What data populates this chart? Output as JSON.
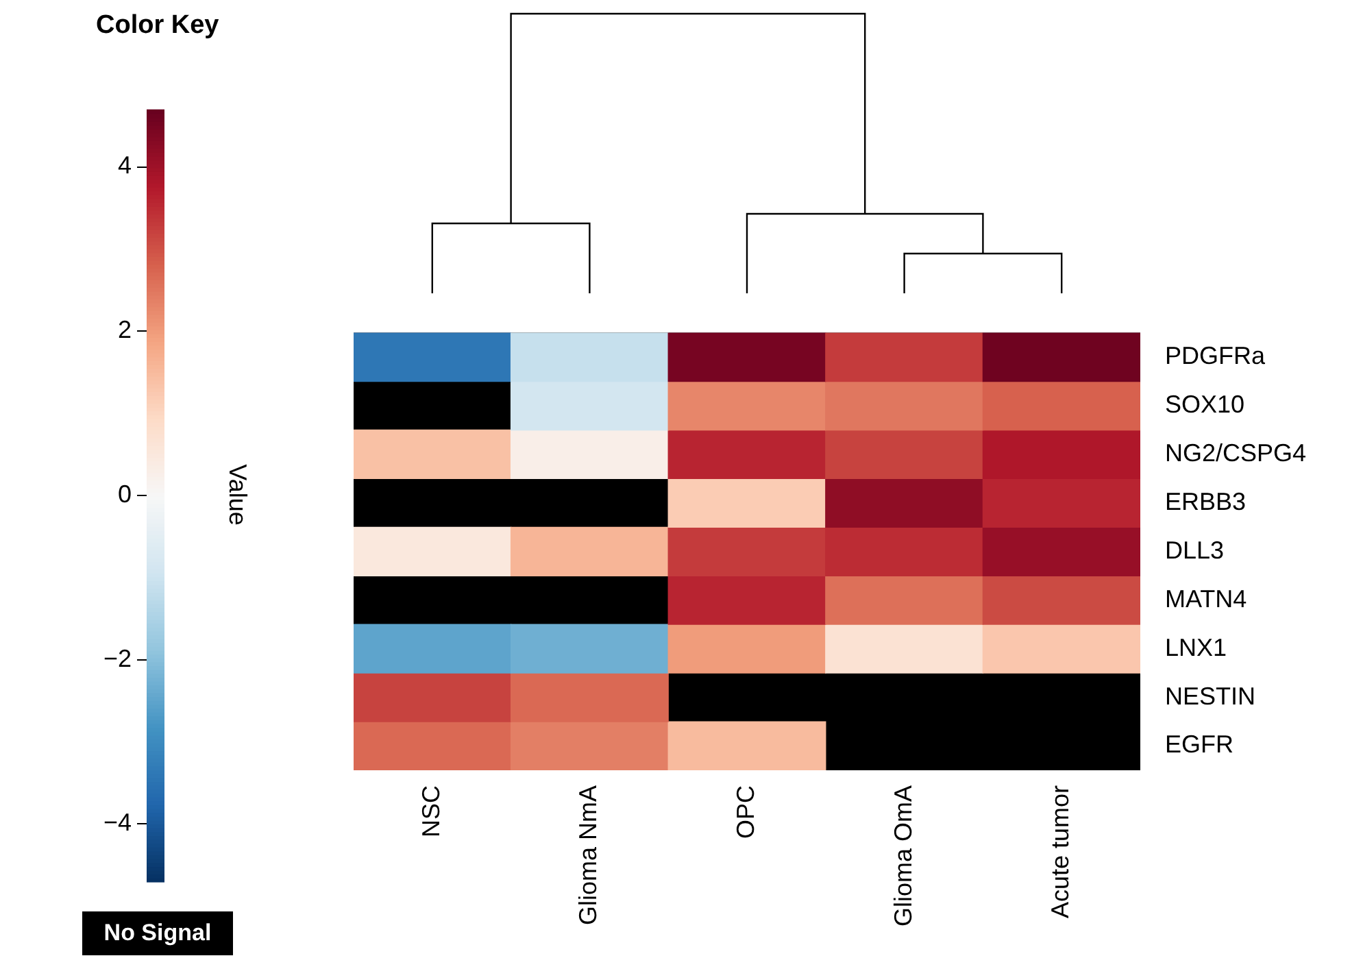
{
  "chart_data": {
    "type": "heatmap",
    "title": "Color Key",
    "clabel": "Value",
    "categories": [
      "NSC",
      "Glioma NmA",
      "OPC",
      "Glioma OmA",
      "Acute tumor"
    ],
    "y_categories": [
      "PDGFRa",
      "SOX10",
      "NG2/CSPG4",
      "ERBB3",
      "DLL3",
      "MATN4",
      "LNX1",
      "NESTIN",
      "EGFR"
    ],
    "cells": [
      [
        -3.4,
        -1.1,
        4.5,
        3.3,
        4.6
      ],
      [
        null,
        -0.9,
        2.3,
        2.5,
        2.8
      ],
      [
        1.4,
        0.3,
        3.6,
        3.2,
        3.8
      ],
      [
        null,
        null,
        1.2,
        4.2,
        3.6
      ],
      [
        0.5,
        1.6,
        3.3,
        3.5,
        4.1
      ],
      [
        null,
        null,
        3.6,
        2.6,
        3.1
      ],
      [
        -2.5,
        -2.3,
        2.0,
        0.7,
        1.3
      ],
      [
        3.2,
        2.7,
        null,
        null,
        null
      ],
      [
        2.7,
        2.4,
        1.5,
        null,
        null
      ]
    ],
    "clim": [
      -4.7,
      4.7
    ],
    "cticks": [
      -4,
      -2,
      0,
      2,
      4
    ],
    "annotations": [
      "No Signal"
    ]
  }
}
